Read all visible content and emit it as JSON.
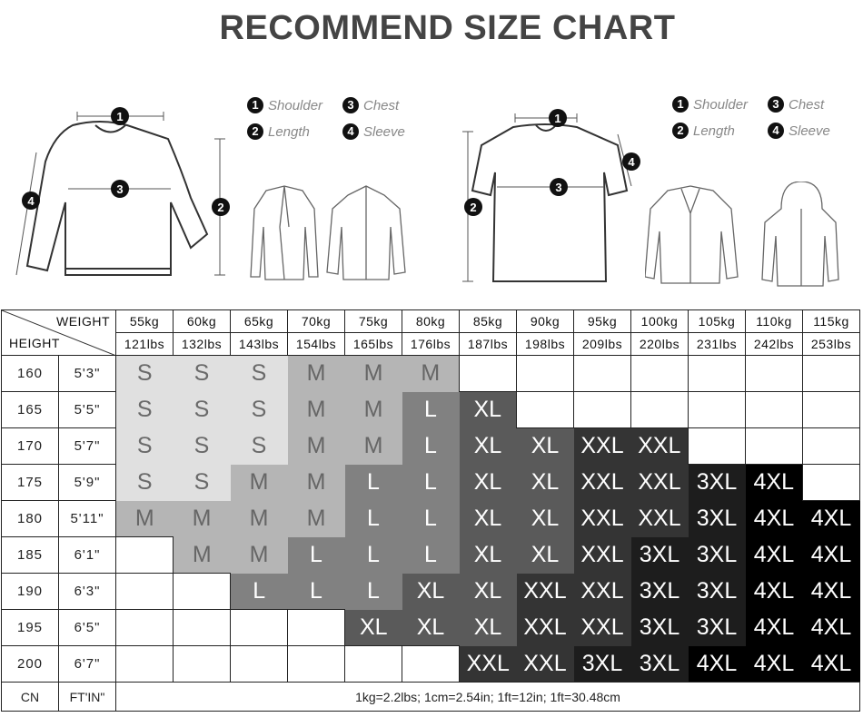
{
  "title": "RECOMMEND SIZE CHART",
  "legend_left": [
    {
      "num": "1",
      "label": "Shoulder"
    },
    {
      "num": "3",
      "label": "Chest"
    },
    {
      "num": "2",
      "label": "Length"
    },
    {
      "num": "4",
      "label": "Sleeve"
    }
  ],
  "legend_right": [
    {
      "num": "1",
      "label": "Shoulder"
    },
    {
      "num": "3",
      "label": "Chest"
    },
    {
      "num": "2",
      "label": "Length"
    },
    {
      "num": "4",
      "label": "Sleeve"
    }
  ],
  "diagram_markers": [
    "1",
    "2",
    "3",
    "4"
  ],
  "table": {
    "weight_label": "WEIGHT",
    "height_label": "HEIGHT",
    "weights_kg": [
      "55kg",
      "60kg",
      "65kg",
      "70kg",
      "75kg",
      "80kg",
      "85kg",
      "90kg",
      "95kg",
      "100kg",
      "105kg",
      "110kg",
      "115kg"
    ],
    "weights_lbs": [
      "121lbs",
      "132lbs",
      "143lbs",
      "154lbs",
      "165lbs",
      "176lbs",
      "187lbs",
      "198lbs",
      "209lbs",
      "220lbs",
      "231lbs",
      "242lbs",
      "253lbs"
    ],
    "rows": [
      {
        "cm": "160",
        "ft": "5'3\"",
        "sizes": [
          "S",
          "S",
          "S",
          "M",
          "M",
          "M",
          "",
          "",
          "",
          "",
          "",
          "",
          ""
        ]
      },
      {
        "cm": "165",
        "ft": "5'5\"",
        "sizes": [
          "S",
          "S",
          "S",
          "M",
          "M",
          "L",
          "XL",
          "",
          "",
          "",
          "",
          "",
          ""
        ]
      },
      {
        "cm": "170",
        "ft": "5'7\"",
        "sizes": [
          "S",
          "S",
          "S",
          "M",
          "M",
          "L",
          "XL",
          "XL",
          "XXL",
          "XXL",
          "",
          "",
          ""
        ]
      },
      {
        "cm": "175",
        "ft": "5'9\"",
        "sizes": [
          "S",
          "S",
          "M",
          "M",
          "L",
          "L",
          "XL",
          "XL",
          "XXL",
          "XXL",
          "3XL",
          "4XL",
          ""
        ]
      },
      {
        "cm": "180",
        "ft": "5'11\"",
        "sizes": [
          "M",
          "M",
          "M",
          "M",
          "L",
          "L",
          "XL",
          "XL",
          "XXL",
          "XXL",
          "3XL",
          "4XL",
          "4XL"
        ]
      },
      {
        "cm": "185",
        "ft": "6'1\"",
        "sizes": [
          "",
          "M",
          "M",
          "L",
          "L",
          "L",
          "XL",
          "XL",
          "XXL",
          "3XL",
          "3XL",
          "4XL",
          "4XL"
        ]
      },
      {
        "cm": "190",
        "ft": "6'3\"",
        "sizes": [
          "",
          "",
          "L",
          "L",
          "L",
          "XL",
          "XL",
          "XXL",
          "XXL",
          "3XL",
          "3XL",
          "4XL",
          "4XL"
        ]
      },
      {
        "cm": "195",
        "ft": "6'5\"",
        "sizes": [
          "",
          "",
          "",
          "",
          "XL",
          "XL",
          "XL",
          "XXL",
          "XXL",
          "3XL",
          "3XL",
          "4XL",
          "4XL"
        ]
      },
      {
        "cm": "200",
        "ft": "6'7\"",
        "sizes": [
          "",
          "",
          "",
          "",
          "",
          "",
          "XXL",
          "XXL",
          "3XL",
          "3XL",
          "4XL",
          "4XL",
          "4XL"
        ]
      }
    ],
    "footer": {
      "cn": "CN",
      "ftin": "FT'IN\"",
      "note": "1kg=2.2lbs; 1cm=2.54in; 1ft=12in; 1ft=30.48cm"
    }
  },
  "size_colors": {
    "S": {
      "bg": "#e0e0e0",
      "fg": "#6a6a6a"
    },
    "M": {
      "bg": "#b5b5b5",
      "fg": "#666666"
    },
    "L": {
      "bg": "#818181",
      "fg": "#ffffff"
    },
    "XL": {
      "bg": "#5a5a5a",
      "fg": "#ffffff"
    },
    "XXL": {
      "bg": "#343434",
      "fg": "#ffffff"
    },
    "3XL": {
      "bg": "#1d1d1d",
      "fg": "#ffffff"
    },
    "4XL": {
      "bg": "#000000",
      "fg": "#ffffff"
    }
  }
}
